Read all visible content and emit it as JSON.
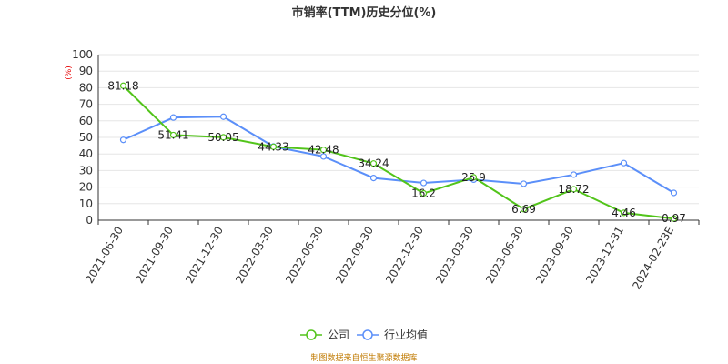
{
  "chart_data": {
    "type": "line",
    "title": "市销率(TTM)历史分位(%)",
    "unit_label": "(%)",
    "categories": [
      "2021-06-30",
      "2021-09-30",
      "2021-12-30",
      "2022-03-30",
      "2022-06-30",
      "2022-09-30",
      "2022-12-30",
      "2023-03-30",
      "2023-06-30",
      "2023-09-30",
      "2023-12-31",
      "2024-02-23E"
    ],
    "series": [
      {
        "name": "公司",
        "color": "#52c41a",
        "values": [
          81.18,
          51.41,
          50.05,
          44.33,
          42.48,
          34.24,
          16.2,
          25.9,
          6.69,
          18.72,
          4.46,
          0.97
        ],
        "labels": [
          "81.18",
          "51.41",
          "50.05",
          "44.33",
          "42.48",
          "34.24",
          "16.2",
          "25.9",
          "6.69",
          "18.72",
          "4.46",
          "0.97"
        ]
      },
      {
        "name": "行业均值",
        "color": "#5b8ff9",
        "values": [
          48.5,
          62,
          62.5,
          44.5,
          38.5,
          25.5,
          22.5,
          24.5,
          22,
          27.5,
          34.5,
          16.5
        ]
      }
    ],
    "ylim": [
      0,
      100
    ],
    "yticks": [
      0,
      10,
      20,
      30,
      40,
      50,
      60,
      70,
      80,
      90,
      100
    ],
    "grid": true,
    "legend_position": "bottom-center"
  },
  "source_text": "制图数据来自恒生聚源数据库"
}
